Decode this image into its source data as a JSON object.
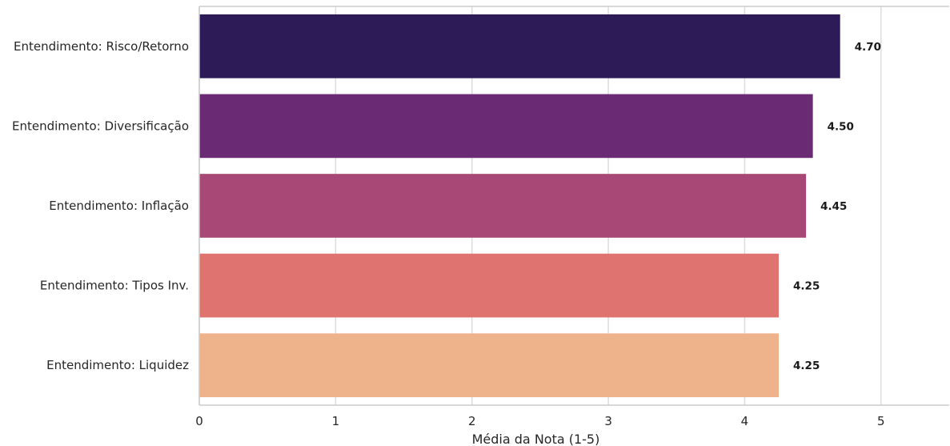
{
  "chart_data": {
    "type": "bar",
    "orientation": "horizontal",
    "categories": [
      "Entendimento: Risco/Retorno",
      "Entendimento: Diversificação",
      "Entendimento: Inflação",
      "Entendimento: Tipos Inv.",
      "Entendimento: Liquidez"
    ],
    "values": [
      4.7,
      4.5,
      4.45,
      4.25,
      4.25
    ],
    "value_labels": [
      "4.70",
      "4.50",
      "4.45",
      "4.25",
      "4.25"
    ],
    "colors": [
      "#2d1b57",
      "#6b2b74",
      "#a84877",
      "#df7370",
      "#eeb38b"
    ],
    "xlabel": "Média da Nota (1-5)",
    "ylabel": "",
    "xlim": [
      0,
      5.5
    ],
    "xticks": [
      0,
      1,
      2,
      3,
      4,
      5
    ],
    "xtick_labels": [
      "0",
      "1",
      "2",
      "3",
      "4",
      "5"
    ],
    "grid": true
  }
}
